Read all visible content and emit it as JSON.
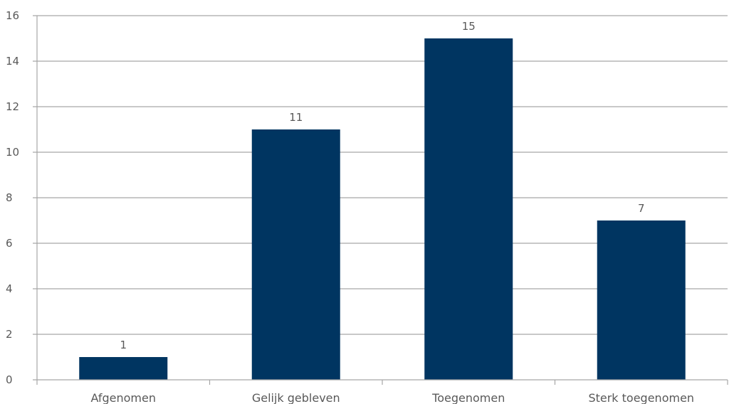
{
  "chart_data": {
    "type": "bar",
    "title": "",
    "xlabel": "",
    "ylabel": "",
    "categories": [
      "Afgenomen",
      "Gelijk gebleven",
      "Toegenomen",
      "Sterk toegenomen"
    ],
    "values": [
      1,
      11,
      15,
      7
    ],
    "data_labels": [
      "1",
      "11",
      "15",
      "7"
    ],
    "ylim": [
      0,
      16
    ],
    "yticks": [
      0,
      2,
      4,
      6,
      8,
      10,
      12,
      14,
      16
    ],
    "ytick_labels": [
      "0",
      "2",
      "4",
      "6",
      "8",
      "10",
      "12",
      "14",
      "16"
    ],
    "grid": true,
    "legend": "none",
    "colors": {
      "bar": "#003561",
      "grid": "#a6a6a6",
      "axis": "#a6a6a6",
      "text": "#595959"
    }
  }
}
